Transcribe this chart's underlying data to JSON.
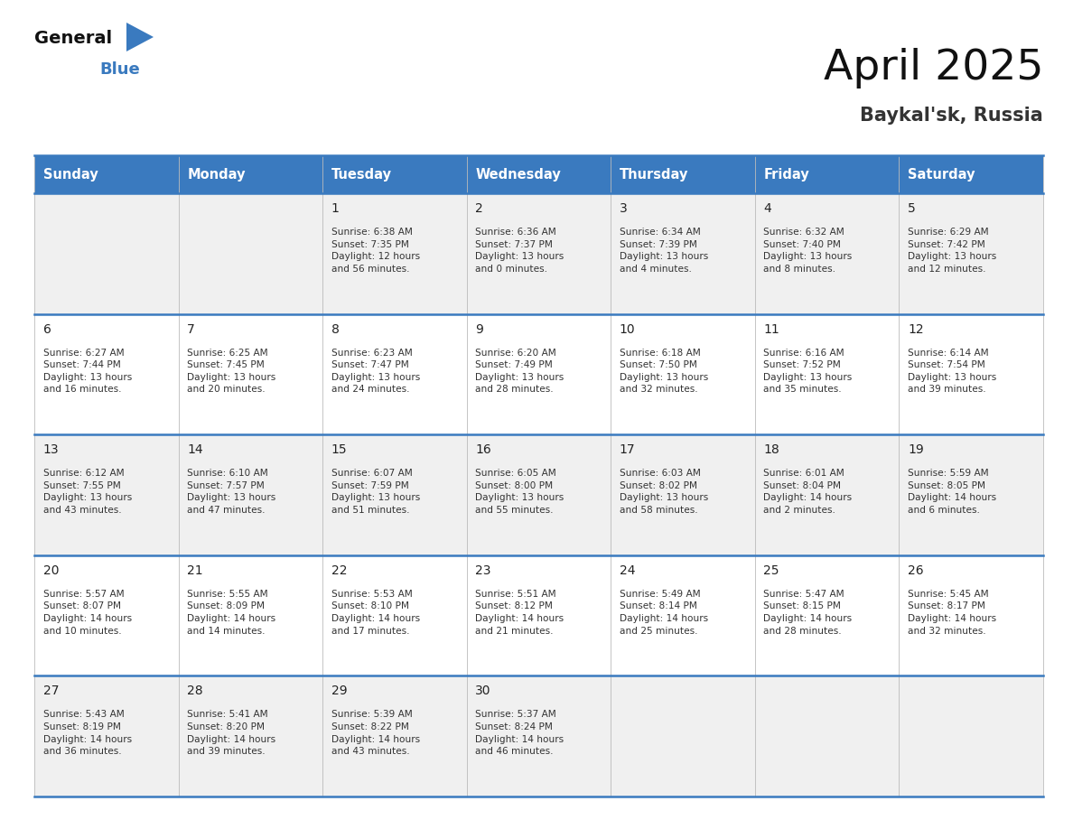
{
  "title": "April 2025",
  "subtitle": "Baykal'sk, Russia",
  "days_of_week": [
    "Sunday",
    "Monday",
    "Tuesday",
    "Wednesday",
    "Thursday",
    "Friday",
    "Saturday"
  ],
  "header_bg": "#3a7abf",
  "header_text": "#ffffff",
  "row_bg_odd": "#f0f0f0",
  "row_bg_even": "#ffffff",
  "day_num_color": "#222222",
  "text_color": "#333333",
  "grid_line_color": "#3a7abf",
  "logo_general_color": "#111111",
  "logo_blue_color": "#3a7abf",
  "calendar_data": [
    [
      null,
      null,
      {
        "day": 1,
        "sunrise": "6:38 AM",
        "sunset": "7:35 PM",
        "daylight": "12 hours\nand 56 minutes."
      },
      {
        "day": 2,
        "sunrise": "6:36 AM",
        "sunset": "7:37 PM",
        "daylight": "13 hours\nand 0 minutes."
      },
      {
        "day": 3,
        "sunrise": "6:34 AM",
        "sunset": "7:39 PM",
        "daylight": "13 hours\nand 4 minutes."
      },
      {
        "day": 4,
        "sunrise": "6:32 AM",
        "sunset": "7:40 PM",
        "daylight": "13 hours\nand 8 minutes."
      },
      {
        "day": 5,
        "sunrise": "6:29 AM",
        "sunset": "7:42 PM",
        "daylight": "13 hours\nand 12 minutes."
      }
    ],
    [
      {
        "day": 6,
        "sunrise": "6:27 AM",
        "sunset": "7:44 PM",
        "daylight": "13 hours\nand 16 minutes."
      },
      {
        "day": 7,
        "sunrise": "6:25 AM",
        "sunset": "7:45 PM",
        "daylight": "13 hours\nand 20 minutes."
      },
      {
        "day": 8,
        "sunrise": "6:23 AM",
        "sunset": "7:47 PM",
        "daylight": "13 hours\nand 24 minutes."
      },
      {
        "day": 9,
        "sunrise": "6:20 AM",
        "sunset": "7:49 PM",
        "daylight": "13 hours\nand 28 minutes."
      },
      {
        "day": 10,
        "sunrise": "6:18 AM",
        "sunset": "7:50 PM",
        "daylight": "13 hours\nand 32 minutes."
      },
      {
        "day": 11,
        "sunrise": "6:16 AM",
        "sunset": "7:52 PM",
        "daylight": "13 hours\nand 35 minutes."
      },
      {
        "day": 12,
        "sunrise": "6:14 AM",
        "sunset": "7:54 PM",
        "daylight": "13 hours\nand 39 minutes."
      }
    ],
    [
      {
        "day": 13,
        "sunrise": "6:12 AM",
        "sunset": "7:55 PM",
        "daylight": "13 hours\nand 43 minutes."
      },
      {
        "day": 14,
        "sunrise": "6:10 AM",
        "sunset": "7:57 PM",
        "daylight": "13 hours\nand 47 minutes."
      },
      {
        "day": 15,
        "sunrise": "6:07 AM",
        "sunset": "7:59 PM",
        "daylight": "13 hours\nand 51 minutes."
      },
      {
        "day": 16,
        "sunrise": "6:05 AM",
        "sunset": "8:00 PM",
        "daylight": "13 hours\nand 55 minutes."
      },
      {
        "day": 17,
        "sunrise": "6:03 AM",
        "sunset": "8:02 PM",
        "daylight": "13 hours\nand 58 minutes."
      },
      {
        "day": 18,
        "sunrise": "6:01 AM",
        "sunset": "8:04 PM",
        "daylight": "14 hours\nand 2 minutes."
      },
      {
        "day": 19,
        "sunrise": "5:59 AM",
        "sunset": "8:05 PM",
        "daylight": "14 hours\nand 6 minutes."
      }
    ],
    [
      {
        "day": 20,
        "sunrise": "5:57 AM",
        "sunset": "8:07 PM",
        "daylight": "14 hours\nand 10 minutes."
      },
      {
        "day": 21,
        "sunrise": "5:55 AM",
        "sunset": "8:09 PM",
        "daylight": "14 hours\nand 14 minutes."
      },
      {
        "day": 22,
        "sunrise": "5:53 AM",
        "sunset": "8:10 PM",
        "daylight": "14 hours\nand 17 minutes."
      },
      {
        "day": 23,
        "sunrise": "5:51 AM",
        "sunset": "8:12 PM",
        "daylight": "14 hours\nand 21 minutes."
      },
      {
        "day": 24,
        "sunrise": "5:49 AM",
        "sunset": "8:14 PM",
        "daylight": "14 hours\nand 25 minutes."
      },
      {
        "day": 25,
        "sunrise": "5:47 AM",
        "sunset": "8:15 PM",
        "daylight": "14 hours\nand 28 minutes."
      },
      {
        "day": 26,
        "sunrise": "5:45 AM",
        "sunset": "8:17 PM",
        "daylight": "14 hours\nand 32 minutes."
      }
    ],
    [
      {
        "day": 27,
        "sunrise": "5:43 AM",
        "sunset": "8:19 PM",
        "daylight": "14 hours\nand 36 minutes."
      },
      {
        "day": 28,
        "sunrise": "5:41 AM",
        "sunset": "8:20 PM",
        "daylight": "14 hours\nand 39 minutes."
      },
      {
        "day": 29,
        "sunrise": "5:39 AM",
        "sunset": "8:22 PM",
        "daylight": "14 hours\nand 43 minutes."
      },
      {
        "day": 30,
        "sunrise": "5:37 AM",
        "sunset": "8:24 PM",
        "daylight": "14 hours\nand 46 minutes."
      },
      null,
      null,
      null
    ]
  ]
}
